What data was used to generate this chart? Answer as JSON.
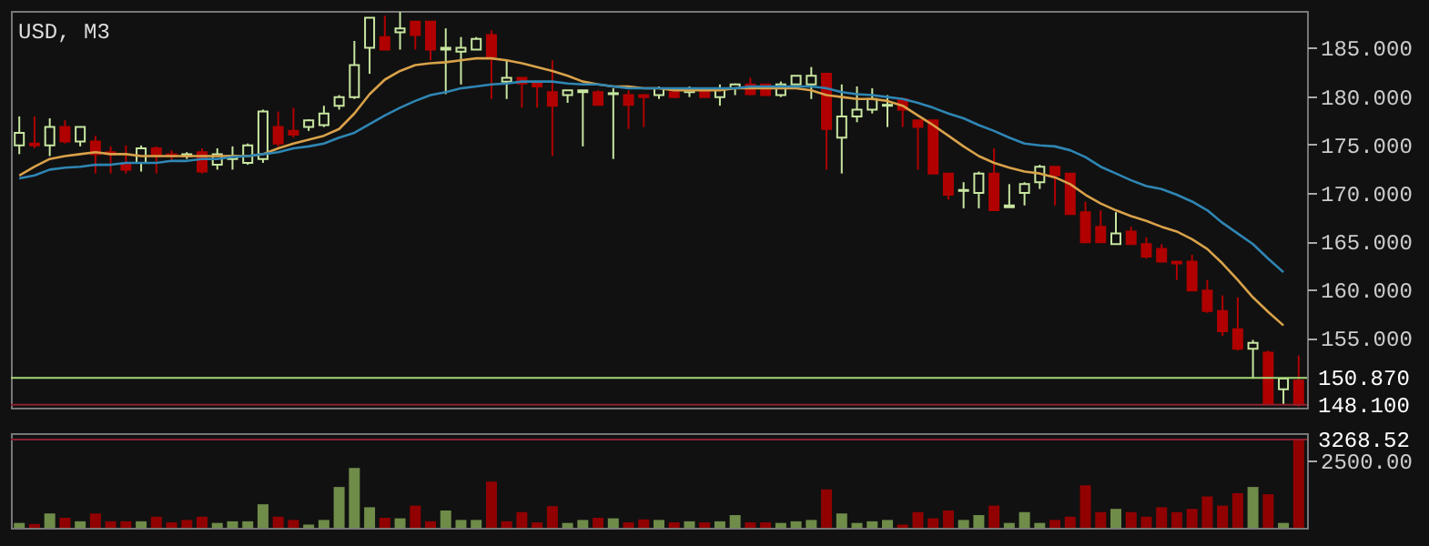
{
  "chart_data": [
    {
      "type": "candlestick",
      "title": "USD, M3",
      "categories": [
        null,
        null,
        null,
        null,
        null,
        null,
        null,
        null,
        null,
        null,
        null,
        null,
        null,
        null,
        null,
        null,
        null,
        null,
        null,
        null,
        null,
        null,
        null,
        null,
        null,
        null,
        null,
        null,
        null,
        null,
        null,
        null,
        null,
        null,
        null,
        null,
        null,
        null,
        null,
        null,
        null,
        null,
        null,
        null,
        null,
        null,
        null,
        null,
        null,
        null,
        null,
        null,
        null,
        null,
        null,
        null,
        null,
        null,
        null,
        null,
        null,
        null,
        null,
        null,
        null,
        null,
        null,
        null,
        null,
        null,
        null,
        null,
        null,
        null,
        null,
        null,
        null,
        null,
        null,
        null,
        null,
        null,
        null,
        null,
        null
      ],
      "ohlc": [
        [
          174.9,
          177.9,
          174.0,
          176.2
        ],
        [
          175.1,
          177.9,
          174.6,
          174.9
        ],
        [
          174.9,
          177.7,
          173.8,
          176.8
        ],
        [
          176.8,
          177.5,
          175.1,
          175.3
        ],
        [
          175.3,
          176.8,
          174.8,
          176.8
        ],
        [
          175.3,
          175.9,
          172.0,
          174.0
        ],
        [
          174.2,
          174.8,
          172.0,
          174.0
        ],
        [
          172.9,
          174.9,
          172.0,
          172.4
        ],
        [
          173.1,
          174.9,
          172.2,
          174.6
        ],
        [
          174.6,
          174.8,
          172.0,
          173.8
        ],
        [
          174.0,
          174.4,
          173.3,
          173.8
        ],
        [
          173.8,
          174.2,
          173.5,
          174.0
        ],
        [
          174.2,
          174.6,
          172.0,
          172.2
        ],
        [
          172.9,
          174.6,
          172.4,
          174.0
        ],
        [
          173.5,
          174.8,
          172.4,
          173.8
        ],
        [
          173.1,
          175.1,
          172.9,
          174.9
        ],
        [
          173.5,
          178.6,
          173.1,
          178.4
        ],
        [
          176.8,
          178.4,
          174.8,
          175.1
        ],
        [
          176.4,
          178.8,
          175.7,
          176.0
        ],
        [
          176.8,
          177.6,
          176.4,
          177.5
        ],
        [
          177.0,
          179.0,
          176.8,
          178.2
        ],
        [
          179.0,
          180.1,
          178.6,
          179.9
        ],
        [
          179.9,
          185.7,
          179.7,
          183.2
        ],
        [
          185.0,
          188.1,
          182.3,
          188.1
        ],
        [
          186.1,
          188.3,
          184.8,
          184.8
        ],
        [
          186.6,
          188.7,
          184.8,
          187.0
        ],
        [
          187.7,
          187.7,
          184.8,
          186.3
        ],
        [
          187.7,
          187.7,
          183.7,
          184.8
        ],
        [
          184.8,
          187.0,
          180.2,
          185.0
        ],
        [
          184.6,
          186.1,
          181.2,
          185.0
        ],
        [
          184.8,
          186.1,
          184.8,
          185.9
        ],
        [
          186.3,
          186.8,
          179.7,
          184.1
        ],
        [
          181.5,
          183.7,
          179.7,
          181.9
        ],
        [
          181.9,
          181.9,
          178.8,
          181.3
        ],
        [
          181.3,
          181.3,
          178.8,
          181.0
        ],
        [
          180.4,
          183.7,
          173.8,
          179.0
        ],
        [
          180.1,
          180.6,
          179.3,
          180.6
        ],
        [
          180.4,
          180.6,
          174.8,
          180.6
        ],
        [
          180.4,
          180.6,
          179.0,
          179.1
        ],
        [
          180.2,
          180.8,
          173.5,
          180.3
        ],
        [
          180.1,
          180.6,
          176.6,
          179.1
        ],
        [
          180.1,
          180.2,
          176.8,
          179.9
        ],
        [
          180.1,
          181.0,
          179.7,
          180.8
        ],
        [
          180.4,
          180.4,
          179.9,
          179.9
        ],
        [
          180.4,
          181.0,
          179.9,
          180.8
        ],
        [
          180.8,
          180.8,
          179.9,
          179.9
        ],
        [
          179.9,
          181.2,
          179.0,
          180.8
        ],
        [
          180.8,
          181.3,
          180.1,
          181.2
        ],
        [
          181.2,
          181.9,
          180.1,
          180.2
        ],
        [
          181.2,
          181.2,
          180.1,
          180.1
        ],
        [
          180.1,
          181.5,
          179.9,
          181.2
        ],
        [
          181.2,
          182.1,
          181.2,
          182.1
        ],
        [
          181.2,
          183.0,
          179.7,
          182.1
        ],
        [
          182.3,
          182.3,
          172.4,
          176.6
        ],
        [
          175.7,
          181.2,
          172.0,
          177.9
        ],
        [
          177.9,
          181.0,
          177.3,
          178.6
        ],
        [
          178.6,
          180.8,
          178.2,
          179.7
        ],
        [
          179.0,
          180.1,
          176.8,
          179.1
        ],
        [
          179.7,
          179.7,
          176.8,
          178.6
        ],
        [
          177.5,
          177.5,
          172.4,
          176.8
        ],
        [
          177.5,
          177.5,
          172.0,
          172.0
        ],
        [
          172.0,
          172.0,
          169.3,
          169.8
        ],
        [
          170.2,
          171.1,
          168.4,
          170.3
        ],
        [
          170.0,
          172.2,
          168.4,
          172.0
        ],
        [
          172.0,
          174.6,
          168.2,
          168.2
        ],
        [
          168.5,
          170.9,
          168.5,
          168.7
        ],
        [
          170.0,
          171.1,
          168.7,
          170.9
        ],
        [
          171.1,
          172.9,
          170.4,
          172.7
        ],
        [
          172.7,
          172.7,
          168.7,
          171.8
        ],
        [
          172.0,
          172.0,
          167.8,
          167.8
        ],
        [
          168.0,
          169.1,
          164.9,
          164.9
        ],
        [
          166.5,
          168.2,
          164.9,
          164.9
        ],
        [
          164.7,
          168.0,
          164.7,
          165.8
        ],
        [
          166.0,
          166.5,
          164.7,
          164.7
        ],
        [
          164.7,
          165.4,
          163.2,
          163.4
        ],
        [
          164.2,
          164.7,
          162.9,
          162.9
        ],
        [
          162.9,
          162.9,
          161.0,
          162.7
        ],
        [
          162.9,
          163.6,
          159.9,
          159.9
        ],
        [
          159.9,
          161.0,
          157.6,
          157.8
        ],
        [
          157.8,
          159.4,
          155.2,
          155.7
        ],
        [
          155.9,
          159.2,
          153.7,
          153.9
        ],
        [
          153.9,
          154.8,
          150.8,
          154.5
        ],
        [
          153.5,
          153.7,
          148.2,
          148.2
        ],
        [
          149.7,
          150.8,
          148.1,
          150.8
        ],
        [
          150.6,
          153.2,
          147.9,
          148.1
        ]
      ],
      "colors": [
        "#c8e6a0",
        "#b00000",
        "#c8e6a0",
        "#b00000",
        "#c8e6a0",
        "#b00000",
        "#b00000",
        "#b00000",
        "#c8e6a0",
        "#b00000",
        "#b00000",
        "#c8e6a0",
        "#b00000",
        "#c8e6a0",
        "#c8e6a0",
        "#c8e6a0",
        "#c8e6a0",
        "#b00000",
        "#b00000",
        "#c8e6a0",
        "#c8e6a0",
        "#c8e6a0",
        "#c8e6a0",
        "#c8e6a0",
        "#b00000",
        "#c8e6a0",
        "#b00000",
        "#b00000",
        "#c8e6a0",
        "#c8e6a0",
        "#c8e6a0",
        "#b00000",
        "#c8e6a0",
        "#b00000",
        "#b00000",
        "#b00000",
        "#c8e6a0",
        "#c8e6a0",
        "#b00000",
        "#c8e6a0",
        "#b00000",
        "#b00000",
        "#c8e6a0",
        "#b00000",
        "#c8e6a0",
        "#b00000",
        "#c8e6a0",
        "#c8e6a0",
        "#b00000",
        "#b00000",
        "#c8e6a0",
        "#c8e6a0",
        "#c8e6a0",
        "#b00000",
        "#c8e6a0",
        "#c8e6a0",
        "#c8e6a0",
        "#c8e6a0",
        "#b00000",
        "#b00000",
        "#b00000",
        "#b00000",
        "#c8e6a0",
        "#c8e6a0",
        "#b00000",
        "#c8e6a0",
        "#c8e6a0",
        "#c8e6a0",
        "#b00000",
        "#b00000",
        "#b00000",
        "#b00000",
        "#c8e6a0",
        "#b00000",
        "#b00000",
        "#b00000",
        "#b00000",
        "#b00000",
        "#b00000",
        "#b00000",
        "#b00000",
        "#c8e6a0",
        "#b00000",
        "#c8e6a0",
        "#b00000"
      ],
      "series": [
        {
          "type": "line",
          "color": "#d9a24a",
          "values": [
            171.8,
            172.7,
            173.5,
            173.8,
            174.0,
            174.2,
            174.0,
            174.0,
            173.8,
            173.8,
            173.8,
            173.8,
            173.8,
            173.8,
            173.8,
            173.8,
            174.0,
            174.6,
            175.1,
            175.5,
            175.9,
            176.6,
            178.2,
            180.2,
            181.7,
            182.6,
            183.2,
            183.4,
            183.5,
            183.7,
            183.9,
            183.9,
            183.7,
            183.4,
            183.0,
            182.6,
            182.1,
            181.5,
            181.2,
            181.0,
            181.0,
            180.8,
            180.8,
            180.6,
            180.6,
            180.6,
            180.6,
            180.8,
            180.8,
            180.8,
            180.8,
            180.8,
            180.6,
            180.1,
            179.9,
            179.7,
            179.7,
            179.5,
            179.0,
            178.0,
            177.0,
            175.9,
            174.8,
            173.8,
            173.1,
            172.6,
            172.2,
            172.0,
            171.6,
            170.9,
            169.8,
            168.9,
            168.2,
            167.6,
            167.1,
            166.5,
            166.0,
            165.2,
            164.2,
            162.7,
            161.0,
            159.2,
            157.7,
            156.3,
            null
          ]
        },
        {
          "type": "line",
          "color": "#2f86b4",
          "values": [
            171.5,
            171.8,
            172.4,
            172.6,
            172.7,
            172.9,
            172.9,
            173.1,
            173.1,
            173.1,
            173.3,
            173.3,
            173.5,
            173.5,
            173.7,
            173.8,
            174.0,
            174.2,
            174.6,
            174.8,
            175.1,
            175.7,
            176.2,
            177.1,
            178.0,
            178.8,
            179.5,
            180.1,
            180.4,
            180.8,
            181.0,
            181.2,
            181.3,
            181.5,
            181.5,
            181.5,
            181.3,
            181.2,
            181.2,
            181.0,
            180.8,
            180.8,
            180.8,
            180.8,
            180.8,
            180.8,
            180.8,
            180.8,
            181.0,
            181.0,
            181.0,
            181.0,
            181.0,
            180.8,
            180.4,
            180.2,
            180.1,
            179.9,
            179.7,
            179.3,
            178.8,
            178.2,
            177.7,
            177.0,
            176.4,
            175.7,
            175.1,
            174.9,
            174.8,
            174.4,
            173.7,
            172.7,
            172.0,
            171.3,
            170.7,
            170.4,
            169.8,
            169.1,
            168.2,
            166.9,
            165.8,
            164.7,
            163.2,
            161.8,
            null
          ]
        }
      ],
      "ylim": [
        147.8,
        188.8
      ],
      "yticks": [
        {
          "value": 155,
          "label": "155.000"
        },
        {
          "value": 160,
          "label": "160.000"
        },
        {
          "value": 165,
          "label": "165.000"
        },
        {
          "value": 170,
          "label": "170.000"
        },
        {
          "value": 175,
          "label": "175.000"
        },
        {
          "value": 180,
          "label": "180.000"
        },
        {
          "value": 185,
          "label": "185.000"
        }
      ],
      "ref_lines": [
        {
          "axis": "y",
          "value": 150.87,
          "label": "150.870",
          "color": "#a6d87a"
        },
        {
          "axis": "y",
          "value": 148.1,
          "label": "148.100",
          "color": "#8a2030"
        }
      ],
      "tick_labels": "y"
    },
    {
      "type": "bar",
      "categories": [
        null,
        null,
        null,
        null,
        null,
        null,
        null,
        null,
        null,
        null,
        null,
        null,
        null,
        null,
        null,
        null,
        null,
        null,
        null,
        null,
        null,
        null,
        null,
        null,
        null,
        null,
        null,
        null,
        null,
        null,
        null,
        null,
        null,
        null,
        null,
        null,
        null,
        null,
        null,
        null,
        null,
        null,
        null,
        null,
        null,
        null,
        null,
        null,
        null,
        null,
        null,
        null,
        null,
        null,
        null,
        null,
        null,
        null,
        null,
        null,
        null,
        null,
        null,
        null,
        null,
        null,
        null,
        null,
        null,
        null,
        null,
        null,
        null,
        null,
        null,
        null,
        null,
        null,
        null,
        null,
        null,
        null,
        null,
        null,
        null
      ],
      "values": [
        180,
        140,
        530,
        370,
        240,
        530,
        240,
        240,
        240,
        410,
        200,
        290,
        410,
        180,
        240,
        240,
        870,
        410,
        290,
        120,
        290,
        1510,
        2210,
        760,
        370,
        350,
        820,
        240,
        640,
        290,
        290,
        1710,
        240,
        580,
        200,
        800,
        180,
        290,
        370,
        350,
        200,
        310,
        290,
        200,
        240,
        200,
        240,
        470,
        200,
        200,
        180,
        240,
        290,
        1420,
        530,
        180,
        240,
        290,
        120,
        580,
        350,
        640,
        290,
        470,
        820,
        180,
        580,
        180,
        290,
        410,
        1570,
        580,
        700,
        580,
        410,
        760,
        580,
        700,
        1160,
        820,
        1280,
        1510,
        1240,
        180,
        3268.52
      ],
      "colors": [
        "#7a9a50",
        "#a00000",
        "#7a9a50",
        "#a00000",
        "#7a9a50",
        "#a00000",
        "#a00000",
        "#a00000",
        "#7a9a50",
        "#a00000",
        "#a00000",
        "#a00000",
        "#a00000",
        "#7a9a50",
        "#7a9a50",
        "#7a9a50",
        "#7a9a50",
        "#a00000",
        "#a00000",
        "#7a9a50",
        "#7a9a50",
        "#7a9a50",
        "#7a9a50",
        "#7a9a50",
        "#a00000",
        "#7a9a50",
        "#a00000",
        "#a00000",
        "#7a9a50",
        "#7a9a50",
        "#7a9a50",
        "#a00000",
        "#a00000",
        "#a00000",
        "#a00000",
        "#a00000",
        "#7a9a50",
        "#7a9a50",
        "#a00000",
        "#7a9a50",
        "#a00000",
        "#a00000",
        "#7a9a50",
        "#a00000",
        "#7a9a50",
        "#a00000",
        "#7a9a50",
        "#7a9a50",
        "#a00000",
        "#a00000",
        "#7a9a50",
        "#7a9a50",
        "#7a9a50",
        "#a00000",
        "#7a9a50",
        "#7a9a50",
        "#7a9a50",
        "#7a9a50",
        "#a00000",
        "#a00000",
        "#a00000",
        "#a00000",
        "#7a9a50",
        "#7a9a50",
        "#a00000",
        "#7a9a50",
        "#7a9a50",
        "#7a9a50",
        "#a00000",
        "#a00000",
        "#a00000",
        "#a00000",
        "#7a9a50",
        "#a00000",
        "#a00000",
        "#a00000",
        "#a00000",
        "#a00000",
        "#a00000",
        "#a00000",
        "#a00000",
        "#7a9a50",
        "#a00000",
        "#7a9a50",
        "#a00000"
      ],
      "ylim": [
        0,
        3500
      ],
      "yticks": [
        {
          "value": 2500,
          "label": "2500.00"
        }
      ],
      "ref_lines": [
        {
          "axis": "y",
          "value": 3268.52,
          "label": "3268.52",
          "color": "#8a2030"
        }
      ],
      "tick_labels": "y"
    }
  ]
}
